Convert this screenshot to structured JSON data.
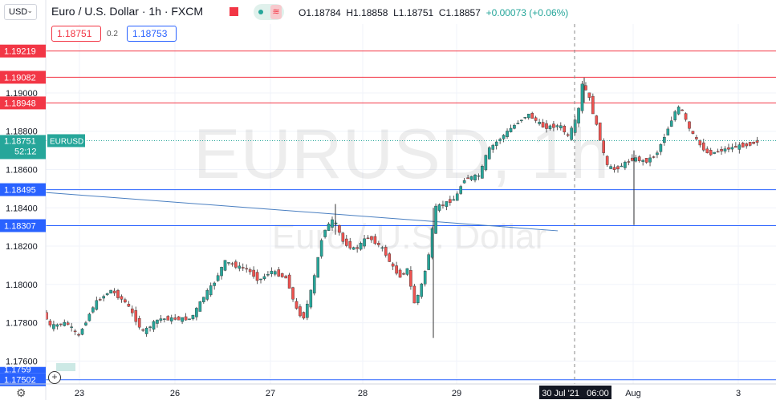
{
  "header": {
    "currency_select": "USD",
    "title": "Euro / U.S. Dollar · 1h · FXCM",
    "ohlc": {
      "o": "O1.18784",
      "h": "H1.18858",
      "l": "L1.18751",
      "c": "C1.18857",
      "chg": "+0.00073 (+0.06%)"
    },
    "sell_price": "1.18751",
    "spread": "0.2",
    "buy_price": "1.18753"
  },
  "watermark": {
    "main": "EURUSD, 1h",
    "sub": "Euro / U.S. Dollar"
  },
  "current_price": {
    "value": "1.18751",
    "countdown": "52:12",
    "symbol": "EURUSD"
  },
  "crosshair_label": "30 Jul '21   06:00",
  "colors": {
    "up": "#26a69a",
    "down": "#ef5350",
    "resistance": "#f23645",
    "support": "#2962ff",
    "trend": "#4a7fc1"
  },
  "chart_data": {
    "type": "candlestick",
    "ylim": [
      1.1748,
      1.1936
    ],
    "y_ticks": [
      1.176,
      1.178,
      1.18,
      1.182,
      1.184,
      1.186,
      1.188,
      1.19
    ],
    "x_ticks": [
      "23",
      "26",
      "27",
      "28",
      "29",
      "Aug",
      "3"
    ],
    "resistance_levels": [
      "1.19219",
      "1.19082",
      "1.18948"
    ],
    "support_levels": [
      "1.18495",
      "1.18307",
      "1.17502"
    ],
    "partial_label": "1.1759",
    "trendline": {
      "from": 1.1848,
      "to": 1.1828
    },
    "path": [
      [
        23,
        1.1788
      ],
      [
        24,
        1.176
      ],
      [
        28,
        1.1772
      ],
      [
        38,
        1.1778
      ],
      [
        50,
        1.179
      ],
      [
        65,
        1.1778
      ],
      [
        85,
        1.178
      ],
      [
        100,
        1.1773
      ],
      [
        120,
        1.179
      ],
      [
        140,
        1.1797
      ],
      [
        160,
        1.179
      ],
      [
        180,
        1.1775
      ],
      [
        200,
        1.1782
      ],
      [
        220,
        1.1782
      ],
      [
        240,
        1.1782
      ],
      [
        258,
        1.1795
      ],
      [
        268,
        1.18
      ],
      [
        282,
        1.1812
      ],
      [
        300,
        1.1809
      ],
      [
        310,
        1.1808
      ],
      [
        325,
        1.1802
      ],
      [
        340,
        1.1807
      ],
      [
        360,
        1.1803
      ],
      [
        370,
        1.1788
      ],
      [
        380,
        1.1782
      ],
      [
        392,
        1.18
      ],
      [
        405,
        1.1828
      ],
      [
        418,
        1.1834
      ],
      [
        430,
        1.1822
      ],
      [
        445,
        1.1818
      ],
      [
        460,
        1.1825
      ],
      [
        470,
        1.1822
      ],
      [
        480,
        1.1818
      ],
      [
        490,
        1.181
      ],
      [
        500,
        1.1804
      ],
      [
        510,
        1.1808
      ],
      [
        518,
        1.179
      ],
      [
        525,
        1.1796
      ],
      [
        535,
        1.1812
      ],
      [
        545,
        1.184
      ],
      [
        560,
        1.1843
      ],
      [
        570,
        1.1845
      ],
      [
        580,
        1.1855
      ],
      [
        600,
        1.1857
      ],
      [
        610,
        1.187
      ],
      [
        625,
        1.1876
      ],
      [
        640,
        1.1882
      ],
      [
        660,
        1.1889
      ],
      [
        680,
        1.1882
      ],
      [
        700,
        1.1883
      ],
      [
        710,
        1.1877
      ],
      [
        722,
        1.1888
      ],
      [
        728,
        1.1905
      ],
      [
        736,
        1.1898
      ],
      [
        744,
        1.1885
      ],
      [
        750,
        1.1876
      ],
      [
        758,
        1.1862
      ],
      [
        768,
        1.186
      ],
      [
        780,
        1.1863
      ],
      [
        792,
        1.1866
      ],
      [
        806,
        1.1864
      ],
      [
        820,
        1.1868
      ],
      [
        833,
        1.188
      ],
      [
        843,
        1.189
      ],
      [
        850,
        1.1893
      ],
      [
        860,
        1.1882
      ],
      [
        872,
        1.1874
      ],
      [
        885,
        1.1868
      ],
      [
        900,
        1.187
      ],
      [
        920,
        1.1872
      ],
      [
        935,
        1.1873
      ],
      [
        947,
        1.1875
      ]
    ]
  }
}
